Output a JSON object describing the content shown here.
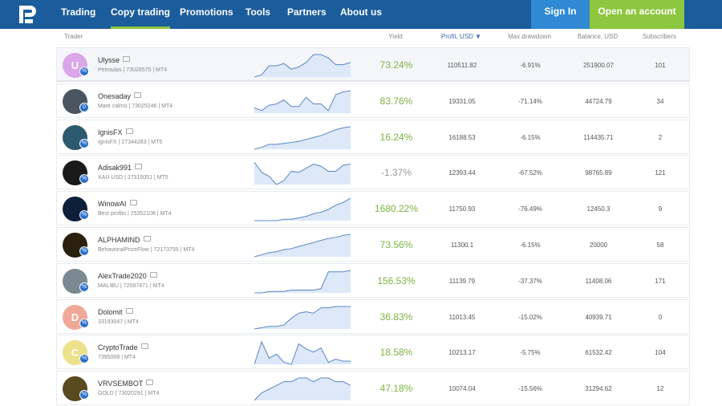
{
  "nav": {
    "items": [
      "Trading",
      "Copy trading",
      "Promotions",
      "Tools",
      "Partners",
      "About us"
    ],
    "active": 1,
    "sign_in": "Sign In",
    "open_account": "Open an account"
  },
  "colors": {
    "nav": "#1b5d9c",
    "accent": "#8dc63f",
    "signin": "#2f8ad3",
    "yield_positive": "#7cb342"
  },
  "columns": {
    "trader": "Trader",
    "yield": "Yield",
    "profit": "Profit, USD ▼",
    "drawdown": "Max drawdown",
    "balance": "Balance, USD",
    "subscribers": "Subscribers"
  },
  "rows": [
    {
      "name": "Ulysse",
      "sub": "Petroulas | 73028575 | MT4",
      "initial": "U",
      "avatar": "#dba6e8",
      "badge": "%",
      "yield": "73.24%",
      "profit": "110511.82",
      "drawdown": "-6.91%",
      "balance": "251900.07",
      "subs": "101",
      "spark": [
        0,
        2,
        10,
        10,
        12,
        7,
        9,
        13,
        20,
        20,
        17,
        11,
        11,
        13
      ]
    },
    {
      "name": "Onesaday",
      "sub": "Mare calmo | 73025246 | MT4",
      "initial": "",
      "avatar": "#4a5560",
      "badge": "0",
      "yield": "83.76%",
      "profit": "19331.05",
      "drawdown": "-71.14%",
      "balance": "44724.79",
      "subs": "34",
      "spark": [
        4,
        2,
        6,
        7,
        10,
        5,
        5,
        12,
        7,
        7,
        2,
        14,
        16,
        17
      ]
    },
    {
      "name": "IgnisFX",
      "sub": "IgnisFX | 27344283 | MT5",
      "initial": "",
      "avatar": "#2d5a6e",
      "badge": "%",
      "yield": "16.24%",
      "profit": "16188.53",
      "drawdown": "-6.15%",
      "balance": "114435.71",
      "subs": "2",
      "spark": [
        0,
        2,
        5,
        5,
        6,
        7,
        8,
        10,
        12,
        14,
        17,
        20,
        22,
        23
      ]
    },
    {
      "name": "Adisak991",
      "sub": "XAU USD | 27315051 | MT5",
      "initial": "",
      "avatar": "#1a1a1a",
      "badge": "%",
      "yield": "-1.37%",
      "profit": "12393.44",
      "drawdown": "-67.52%",
      "balance": "98765.89",
      "subs": "121",
      "spark": [
        22,
        12,
        8,
        0,
        4,
        13,
        12,
        16,
        20,
        18,
        13,
        13,
        19,
        20
      ]
    },
    {
      "name": "WinowAI",
      "sub": "Best profits | 25352108 | MT4",
      "initial": "",
      "avatar": "#0d1f3a",
      "badge": "%",
      "yield": "1680.22%",
      "profit": "11750.93",
      "drawdown": "-76.49%",
      "balance": "12450.3",
      "subs": "9",
      "spark": [
        0,
        0,
        0,
        0,
        1,
        1,
        2,
        3,
        5,
        6,
        8,
        11,
        13,
        16
      ]
    },
    {
      "name": "ALPHAMIND",
      "sub": "BehavioralPriceFlow | 72173755 | MT4",
      "initial": "",
      "avatar": "#2a2010",
      "badge": "%",
      "yield": "73.56%",
      "profit": "11300.1",
      "drawdown": "-6.15%",
      "balance": "20000",
      "subs": "58",
      "spark": [
        0,
        2,
        4,
        5,
        7,
        8,
        10,
        12,
        14,
        16,
        18,
        19,
        21,
        22
      ]
    },
    {
      "name": "AlexTrade2020",
      "sub": "MALIBU | 72087471 | MT4",
      "initial": "",
      "avatar": "#7a8a90",
      "badge": "%",
      "yield": "156.53%",
      "profit": "11139.79",
      "drawdown": "-37.37%",
      "balance": "11408.06",
      "subs": "171",
      "spark": [
        0,
        0,
        1,
        1,
        1,
        2,
        2,
        2,
        2,
        3,
        15,
        15,
        15,
        16
      ]
    },
    {
      "name": "Dolomit",
      "sub": "33193047 | MT4",
      "initial": "D",
      "avatar": "#f0a898",
      "badge": "%",
      "yield": "36.83%",
      "profit": "11013.45",
      "drawdown": "-15.02%",
      "balance": "40939.71",
      "subs": "0",
      "spark": [
        0,
        1,
        2,
        2,
        3,
        8,
        12,
        13,
        12,
        16,
        16,
        17,
        17,
        17
      ]
    },
    {
      "name": "CryptoTrade",
      "sub": "7395008 | MT4",
      "initial": "C",
      "avatar": "#ede08a",
      "badge": "%",
      "yield": "18.58%",
      "profit": "10213.17",
      "drawdown": "-5.75%",
      "balance": "61532.42",
      "subs": "104",
      "spark": [
        0,
        22,
        6,
        10,
        2,
        0,
        20,
        15,
        12,
        16,
        2,
        5,
        3,
        3
      ]
    },
    {
      "name": "VRVSEMBOT",
      "sub": "GOLD | 73020291 | MT4",
      "initial": "",
      "avatar": "#5a4a20",
      "badge": "%",
      "yield": "47.18%",
      "profit": "10074.04",
      "drawdown": "-15.56%",
      "balance": "31294.62",
      "subs": "12",
      "spark": [
        0,
        2,
        3,
        4,
        5,
        5,
        6,
        6,
        5,
        6,
        6,
        5,
        5,
        4
      ]
    }
  ]
}
